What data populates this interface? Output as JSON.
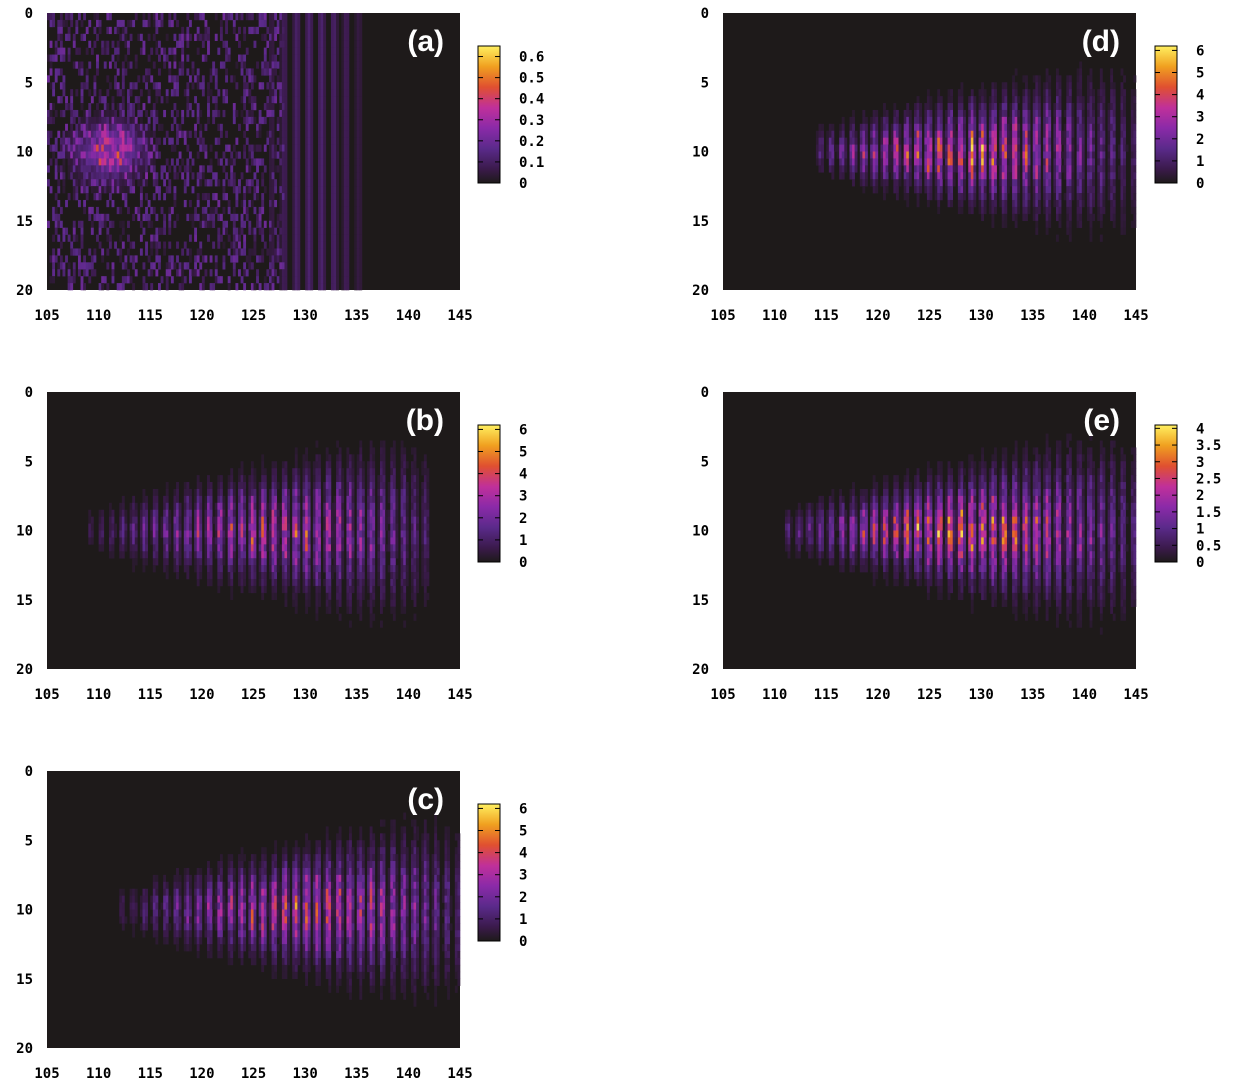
{
  "chart_data": [
    {
      "type": "heatmap",
      "panel_label": "(a)",
      "xlim": [
        105,
        145
      ],
      "ylim": [
        0,
        20
      ],
      "x_ticks": [
        "105",
        "110",
        "115",
        "120",
        "125",
        "130",
        "135",
        "140",
        "145"
      ],
      "y_ticks": [
        "0",
        "5",
        "10",
        "15",
        "20"
      ],
      "colorbar": {
        "range": [
          0,
          0.65
        ],
        "ticks": [
          "0",
          "0.1",
          "0.2",
          "0.3",
          "0.4",
          "0.5",
          "0.6"
        ]
      },
      "pattern": "speckle",
      "peak_x": 111,
      "peak_y": 10,
      "peak_value": 0.35,
      "fringe_region_x": [
        125,
        137
      ]
    },
    {
      "type": "heatmap",
      "panel_label": "(b)",
      "xlim": [
        105,
        145
      ],
      "ylim": [
        0,
        20
      ],
      "x_ticks": [
        "105",
        "110",
        "115",
        "120",
        "125",
        "130",
        "135",
        "140",
        "145"
      ],
      "y_ticks": [
        "0",
        "5",
        "10",
        "15",
        "20"
      ],
      "colorbar": {
        "range": [
          0,
          6.2
        ],
        "ticks": [
          "0",
          "1",
          "2",
          "3",
          "4",
          "5",
          "6"
        ]
      },
      "pattern": "focus",
      "peak_x": 127,
      "peak_y": 10,
      "peak_value": 3.5,
      "extent_x": [
        110,
        141
      ]
    },
    {
      "type": "heatmap",
      "panel_label": "(c)",
      "xlim": [
        105,
        145
      ],
      "ylim": [
        0,
        20
      ],
      "x_ticks": [
        "105",
        "110",
        "115",
        "120",
        "125",
        "130",
        "135",
        "140",
        "145"
      ],
      "y_ticks": [
        "0",
        "5",
        "10",
        "15",
        "20"
      ],
      "colorbar": {
        "range": [
          0,
          6.2
        ],
        "ticks": [
          "0",
          "1",
          "2",
          "3",
          "4",
          "5",
          "6"
        ]
      },
      "pattern": "focus",
      "peak_x": 130,
      "peak_y": 10,
      "peak_value": 3.8,
      "extent_x": [
        113,
        144
      ]
    },
    {
      "type": "heatmap",
      "panel_label": "(d)",
      "xlim": [
        105,
        145
      ],
      "ylim": [
        0,
        20
      ],
      "x_ticks": [
        "105",
        "110",
        "115",
        "120",
        "125",
        "130",
        "135",
        "140",
        "145"
      ],
      "y_ticks": [
        "0",
        "5",
        "10",
        "15",
        "20"
      ],
      "colorbar": {
        "range": [
          0,
          6.2
        ],
        "ticks": [
          "0",
          "1",
          "2",
          "3",
          "4",
          "5",
          "6"
        ]
      },
      "pattern": "focus",
      "peak_x": 128,
      "peak_y": 10,
      "peak_value": 4.2,
      "extent_x": [
        115,
        145
      ]
    },
    {
      "type": "heatmap",
      "panel_label": "(e)",
      "xlim": [
        105,
        145
      ],
      "ylim": [
        0,
        20
      ],
      "x_ticks": [
        "105",
        "110",
        "115",
        "120",
        "125",
        "130",
        "135",
        "140",
        "145"
      ],
      "y_ticks": [
        "0",
        "5",
        "10",
        "15",
        "20"
      ],
      "colorbar": {
        "range": [
          0,
          4.1
        ],
        "ticks": [
          "0",
          "0.5",
          "1",
          "1.5",
          "2",
          "2.5",
          "3",
          "3.5",
          "4"
        ]
      },
      "pattern": "focus",
      "peak_x": 128,
      "peak_y": 10,
      "peak_value": 3.0,
      "extent_x": [
        112,
        145
      ]
    }
  ],
  "colors": {
    "background": "#1e1a1a",
    "palette": [
      "#1e1a1a",
      "#3a1a3a",
      "#5a2a7a",
      "#8a2aa0",
      "#b0309a",
      "#d8402a",
      "#f08a1a",
      "#f8c020",
      "#fff060"
    ]
  }
}
